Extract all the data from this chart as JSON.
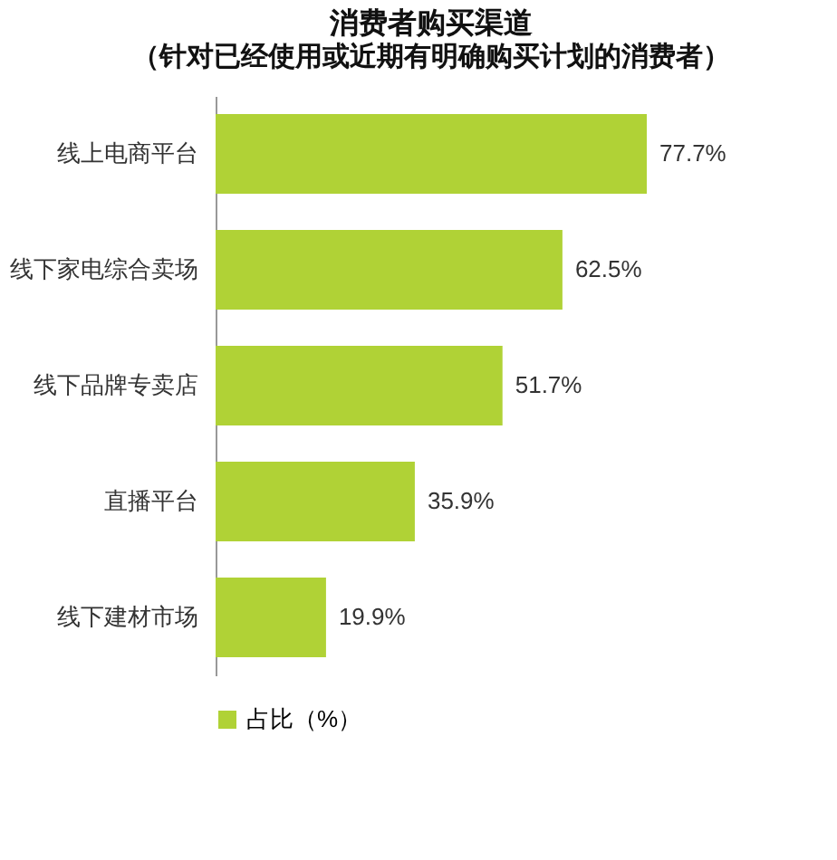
{
  "chart_data": {
    "type": "bar",
    "orientation": "horizontal",
    "title": "消费者购买渠道",
    "subtitle": "（针对已经使用或近期有明确购买计划的消费者）",
    "categories": [
      "线上电商平台",
      "线下家电综合卖场",
      "线下品牌专卖店",
      "直播平台",
      "线下建材市场"
    ],
    "series": [
      {
        "name": "占比（%）",
        "color": "#b0d236",
        "values": [
          77.7,
          62.5,
          51.7,
          35.9,
          19.9
        ],
        "value_labels": [
          "77.7%",
          "62.5%",
          "51.7%",
          "35.9%",
          "19.9%"
        ]
      }
    ],
    "legend": "bottom",
    "grid": false
  }
}
